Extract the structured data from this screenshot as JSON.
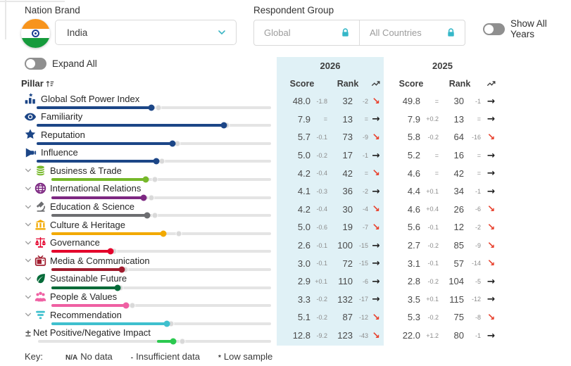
{
  "header": {
    "nation_brand_label": "Nation Brand",
    "nation_brand_value": "India",
    "respondent_group_label": "Respondent Group",
    "respondent_primary_placeholder": "Global",
    "respondent_secondary_placeholder": "All Countries",
    "show_all_years_label": "Show All Years",
    "expand_all_label": "Expand All"
  },
  "table": {
    "pillar_header": "Pillar",
    "year_left": "2026",
    "year_right": "2025",
    "score_header": "Score",
    "rank_header": "Rank"
  },
  "key": {
    "label": "Key:",
    "items": [
      {
        "token": "N/A",
        "text": "No data"
      },
      {
        "token": "-",
        "text": "Insufficient data"
      },
      {
        "token": "*",
        "text": "Low sample"
      }
    ]
  },
  "colors": {
    "accent_teal": "#3bb5c4",
    "band_2026_bg": "#e0f1f6",
    "navy": "#1c4687",
    "trend_down_red": "#e8402c",
    "toggle_off_gray": "#8f8f8f"
  },
  "rows": [
    {
      "label": "Global Soft Power Index",
      "type": "top",
      "icon": "chart-star-icon",
      "color": "#1c4687",
      "slider": {
        "pct": 49,
        "ghost": 52,
        "fill_start": 0
      },
      "y2026": {
        "score": "48.0",
        "delta": "-1.8",
        "rank": "32",
        "rank_delta": "-2",
        "trend": "down"
      },
      "y2025": {
        "score": "49.8",
        "delta": "=",
        "rank": "30",
        "rank_delta": "-1",
        "trend": "flat"
      }
    },
    {
      "label": "Familiarity",
      "type": "top",
      "icon": "eye-icon",
      "color": "#1c4687",
      "slider": {
        "pct": 80,
        "ghost": 81,
        "fill_start": 0
      },
      "y2026": {
        "score": "7.9",
        "delta": "=",
        "rank": "13",
        "rank_delta": "=",
        "trend": "flat"
      },
      "y2025": {
        "score": "7.9",
        "delta": "+0.2",
        "rank": "13",
        "rank_delta": "=",
        "trend": "flat"
      }
    },
    {
      "label": "Reputation",
      "type": "top",
      "icon": "star-icon",
      "color": "#1c4687",
      "slider": {
        "pct": 58,
        "ghost": 60,
        "fill_start": 0
      },
      "y2026": {
        "score": "5.7",
        "delta": "-0.1",
        "rank": "73",
        "rank_delta": "-9",
        "trend": "down"
      },
      "y2025": {
        "score": "5.8",
        "delta": "-0.2",
        "rank": "64",
        "rank_delta": "-16",
        "trend": "down"
      }
    },
    {
      "label": "Influence",
      "type": "top",
      "icon": "megaphone-icon",
      "color": "#1c4687",
      "slider": {
        "pct": 51,
        "ghost": 53.5,
        "fill_start": 0
      },
      "y2026": {
        "score": "5.0",
        "delta": "-0.2",
        "rank": "17",
        "rank_delta": "-1",
        "trend": "flat"
      },
      "y2025": {
        "score": "5.2",
        "delta": "=",
        "rank": "16",
        "rank_delta": "=",
        "trend": "flat"
      }
    },
    {
      "label": "Business & Trade",
      "type": "child",
      "icon": "coins-icon",
      "color": "#76b82a",
      "slider": {
        "pct": 43,
        "ghost": 47,
        "fill_start": 0
      },
      "y2026": {
        "score": "4.2",
        "delta": "-0.4",
        "rank": "42",
        "rank_delta": "=",
        "trend": "down"
      },
      "y2025": {
        "score": "4.6",
        "delta": "=",
        "rank": "42",
        "rank_delta": "=",
        "trend": "flat"
      }
    },
    {
      "label": "International Relations",
      "type": "child",
      "icon": "globe-icon",
      "color": "#7d2882",
      "slider": {
        "pct": 42,
        "ghost": 45.5,
        "fill_start": 0
      },
      "y2026": {
        "score": "4.1",
        "delta": "-0.3",
        "rank": "36",
        "rank_delta": "-2",
        "trend": "flat"
      },
      "y2025": {
        "score": "4.4",
        "delta": "+0.1",
        "rank": "34",
        "rank_delta": "-1",
        "trend": "flat"
      }
    },
    {
      "label": "Education & Science",
      "type": "child",
      "icon": "microscope-icon",
      "color": "#6d6e71",
      "slider": {
        "pct": 43.5,
        "ghost": 47,
        "fill_start": 0
      },
      "y2026": {
        "score": "4.2",
        "delta": "-0.4",
        "rank": "30",
        "rank_delta": "-4",
        "trend": "down"
      },
      "y2025": {
        "score": "4.6",
        "delta": "+0.4",
        "rank": "26",
        "rank_delta": "-6",
        "trend": "down"
      }
    },
    {
      "label": "Culture & Heritage",
      "type": "child",
      "icon": "museum-icon",
      "color": "#f2a900",
      "slider": {
        "pct": 51,
        "ghost": 58,
        "fill_start": 0
      },
      "y2026": {
        "score": "5.0",
        "delta": "-0.6",
        "rank": "19",
        "rank_delta": "-7",
        "trend": "down"
      },
      "y2025": {
        "score": "5.6",
        "delta": "-0.1",
        "rank": "12",
        "rank_delta": "-2",
        "trend": "down"
      }
    },
    {
      "label": "Governance",
      "type": "child",
      "icon": "scales-icon",
      "color": "#e4002b",
      "slider": {
        "pct": 27,
        "ghost": 28.5,
        "fill_start": 0
      },
      "y2026": {
        "score": "2.6",
        "delta": "-0.1",
        "rank": "100",
        "rank_delta": "-15",
        "trend": "flat"
      },
      "y2025": {
        "score": "2.7",
        "delta": "-0.2",
        "rank": "85",
        "rank_delta": "-9",
        "trend": "down"
      }
    },
    {
      "label": "Media & Communication",
      "type": "child",
      "icon": "tv-icon",
      "color": "#a01c2e",
      "slider": {
        "pct": 32,
        "ghost": 33.5,
        "fill_start": 0
      },
      "y2026": {
        "score": "3.0",
        "delta": "-0.1",
        "rank": "72",
        "rank_delta": "-15",
        "trend": "flat"
      },
      "y2025": {
        "score": "3.1",
        "delta": "-0.1",
        "rank": "57",
        "rank_delta": "-14",
        "trend": "down"
      }
    },
    {
      "label": "Sustainable Future",
      "type": "child",
      "icon": "leaf-icon",
      "color": "#046a38",
      "slider": {
        "pct": 30,
        "ghost": 31.5,
        "fill_start": 0
      },
      "y2026": {
        "score": "2.9",
        "delta": "+0.1",
        "rank": "110",
        "rank_delta": "-6",
        "trend": "flat"
      },
      "y2025": {
        "score": "2.8",
        "delta": "-0.2",
        "rank": "104",
        "rank_delta": "-5",
        "trend": "flat"
      }
    },
    {
      "label": "People & Values",
      "type": "child",
      "icon": "people-icon",
      "color": "#ef60a3",
      "slider": {
        "pct": 34,
        "ghost": 37,
        "fill_start": 0
      },
      "y2026": {
        "score": "3.3",
        "delta": "-0.2",
        "rank": "132",
        "rank_delta": "-17",
        "trend": "flat"
      },
      "y2025": {
        "score": "3.5",
        "delta": "+0.1",
        "rank": "115",
        "rank_delta": "-12",
        "trend": "flat"
      }
    },
    {
      "label": "Recommendation",
      "type": "child",
      "icon": "speech-bars-icon",
      "color": "#3fc0ce",
      "slider": {
        "pct": 52.5,
        "ghost": 54.5,
        "fill_start": 0
      },
      "y2026": {
        "score": "5.1",
        "delta": "-0.2",
        "rank": "87",
        "rank_delta": "-12",
        "trend": "down"
      },
      "y2025": {
        "score": "5.3",
        "delta": "-0.2",
        "rank": "75",
        "rank_delta": "-8",
        "trend": "down"
      }
    },
    {
      "label": "Net Positive/Negative Impact",
      "type": "pm",
      "icon": "plus-minus-icon",
      "color": "#2bc94f",
      "slider": {
        "pct": 58,
        "ghost": 62,
        "fill_start": 51
      },
      "y2026": {
        "score": "12.8",
        "delta": "-9.2",
        "rank": "123",
        "rank_delta": "-43",
        "trend": "down"
      },
      "y2025": {
        "score": "22.0",
        "delta": "+1.2",
        "rank": "80",
        "rank_delta": "-1",
        "trend": "flat"
      }
    }
  ]
}
